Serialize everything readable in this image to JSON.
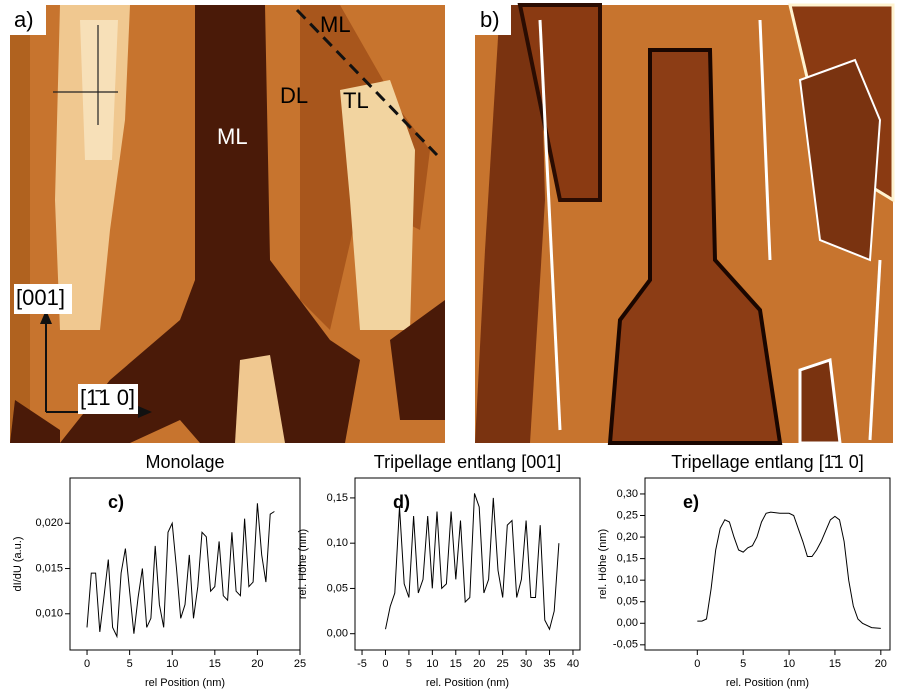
{
  "images": [
    {
      "panel": "a)",
      "labels": [
        "ML",
        "DL",
        "TL",
        "ML",
        "[001]",
        "[1̄1 0]"
      ]
    },
    {
      "panel": "b)"
    }
  ],
  "chart_data": [
    {
      "type": "line",
      "title": "Monolage",
      "panel_label": "c)",
      "x_label": "rel Position (nm)",
      "y_label": "dI/dU (a.u.)",
      "x": [
        0,
        0.5,
        1,
        1.5,
        2,
        2.5,
        3,
        3.5,
        4,
        4.5,
        5,
        5.5,
        6,
        6.5,
        7,
        7.5,
        8,
        8.5,
        9,
        9.5,
        10,
        10.5,
        11,
        11.5,
        12,
        12.5,
        13,
        13.5,
        14,
        14.5,
        15,
        15.5,
        16,
        16.5,
        17,
        17.5,
        18,
        18.5,
        19,
        19.5,
        20,
        20.5,
        21,
        21.5,
        22
      ],
      "series": [
        {
          "color": "#000000",
          "values": [
            0.0085,
            0.0145,
            0.0145,
            0.008,
            0.012,
            0.016,
            0.0085,
            0.0075,
            0.0145,
            0.0172,
            0.0125,
            0.0078,
            0.0118,
            0.015,
            0.0085,
            0.0095,
            0.0175,
            0.011,
            0.0085,
            0.019,
            0.02,
            0.015,
            0.0095,
            0.011,
            0.0165,
            0.0095,
            0.013,
            0.019,
            0.0185,
            0.0125,
            0.013,
            0.018,
            0.012,
            0.0115,
            0.019,
            0.0125,
            0.012,
            0.0205,
            0.013,
            0.0135,
            0.0222,
            0.0165,
            0.0135,
            0.021,
            0.0213
          ]
        }
      ],
      "xlim": [
        -2,
        25
      ],
      "xticks": [
        0,
        5,
        10,
        15,
        20,
        25
      ],
      "ylim": [
        0.006,
        0.025
      ],
      "yticks": [
        {
          "value": 0.01,
          "label": "0,010"
        },
        {
          "value": 0.015,
          "label": "0,015"
        },
        {
          "value": 0.02,
          "label": "0,020"
        }
      ]
    },
    {
      "type": "line",
      "title": "Tripellage entlang [001]",
      "panel_label": "d)",
      "x_label": "rel. Position (nm)",
      "y_label": "rel. Höhe (nm)",
      "x": [
        0,
        1,
        2,
        3,
        4,
        5,
        6,
        7,
        8,
        9,
        10,
        11,
        12,
        13,
        14,
        15,
        16,
        17,
        18,
        19,
        20,
        21,
        22,
        23,
        24,
        25,
        26,
        27,
        28,
        29,
        30,
        31,
        32,
        33,
        34,
        35,
        36,
        37
      ],
      "series": [
        {
          "color": "#000000",
          "values": [
            0.005,
            0.03,
            0.045,
            0.14,
            0.055,
            0.04,
            0.13,
            0.045,
            0.06,
            0.13,
            0.05,
            0.135,
            0.05,
            0.055,
            0.135,
            0.06,
            0.125,
            0.035,
            0.04,
            0.155,
            0.14,
            0.045,
            0.06,
            0.15,
            0.07,
            0.04,
            0.12,
            0.125,
            0.04,
            0.06,
            0.125,
            0.04,
            0.04,
            0.12,
            0.015,
            0.005,
            0.025,
            0.1
          ]
        }
      ],
      "xlim": [
        -6.5,
        41.5
      ],
      "xticks": [
        -5,
        0,
        5,
        10,
        15,
        20,
        25,
        30,
        35,
        40
      ],
      "ylim": [
        -0.018,
        0.172
      ],
      "yticks": [
        {
          "value": 0,
          "label": "0,00"
        },
        {
          "value": 0.05,
          "label": "0,05"
        },
        {
          "value": 0.1,
          "label": "0,10"
        },
        {
          "value": 0.15,
          "label": "0,15"
        }
      ]
    },
    {
      "type": "line",
      "title": "Tripellage entlang [1̄1 0]",
      "panel_label": "e)",
      "x_label": "rel. Position (nm)",
      "y_label": "rel. Höhe (nm)",
      "x": [
        0,
        0.5,
        1,
        1.5,
        2,
        2.5,
        3,
        3.5,
        4,
        4.5,
        5,
        5.5,
        6,
        6.5,
        7,
        7.5,
        8,
        9,
        10,
        10.5,
        11,
        11.5,
        12,
        12.5,
        13,
        13.5,
        14,
        14.5,
        15,
        15.5,
        16,
        16.5,
        17,
        17.5,
        18,
        19,
        20
      ],
      "series": [
        {
          "color": "#000000",
          "values": [
            0.005,
            0.005,
            0.01,
            0.08,
            0.17,
            0.22,
            0.24,
            0.235,
            0.2,
            0.17,
            0.165,
            0.175,
            0.18,
            0.2,
            0.235,
            0.255,
            0.258,
            0.255,
            0.255,
            0.25,
            0.22,
            0.19,
            0.155,
            0.155,
            0.17,
            0.19,
            0.215,
            0.24,
            0.248,
            0.24,
            0.19,
            0.1,
            0.04,
            0.01,
            0,
            -0.01,
            -0.012
          ]
        }
      ],
      "xlim": [
        -5.7,
        21
      ],
      "xticks": [
        0,
        5,
        10,
        15,
        20
      ],
      "ylim": [
        -0.062,
        0.337
      ],
      "yticks": [
        {
          "value": -0.05,
          "label": "-0,05"
        },
        {
          "value": 0,
          "label": "0,00"
        },
        {
          "value": 0.05,
          "label": "0,05"
        },
        {
          "value": 0.1,
          "label": "0,10"
        },
        {
          "value": 0.15,
          "label": "0,15"
        },
        {
          "value": 0.2,
          "label": "0,20"
        },
        {
          "value": 0.25,
          "label": "0,25"
        },
        {
          "value": 0.3,
          "label": "0,30"
        }
      ]
    }
  ]
}
